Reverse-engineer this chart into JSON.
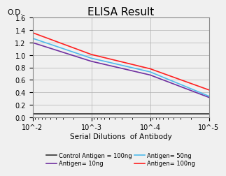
{
  "title": "ELISA Result",
  "xlabel": "Serial Dilutions  of Antibody",
  "ylabel": "O.D.",
  "ylim": [
    0,
    1.6
  ],
  "yticks": [
    0,
    0.2,
    0.4,
    0.6,
    0.8,
    1.0,
    1.2,
    1.4,
    1.6
  ],
  "xtick_vals": [
    0.01,
    0.001,
    0.0001,
    1e-05
  ],
  "xtick_labels": [
    "10^-2",
    "10^-3",
    "10^-4",
    "10^-5"
  ],
  "lines": [
    {
      "label": "Control Antigen = 100ng",
      "color": "#333333",
      "x": [
        0.01,
        0.001,
        0.0001,
        1e-05
      ],
      "y": [
        0.06,
        0.06,
        0.06,
        0.06
      ]
    },
    {
      "label": "Antigen= 10ng",
      "color": "#7030A0",
      "x": [
        0.01,
        0.001,
        0.0001,
        1e-05
      ],
      "y": [
        1.2,
        0.9,
        0.68,
        0.32
      ]
    },
    {
      "label": "Antigen= 50ng",
      "color": "#4FBBEC",
      "x": [
        0.01,
        0.001,
        0.0001,
        1e-05
      ],
      "y": [
        1.27,
        0.95,
        0.73,
        0.34
      ]
    },
    {
      "label": "Antigen= 100ng",
      "color": "#FF2020",
      "x": [
        0.01,
        0.001,
        0.0001,
        1e-05
      ],
      "y": [
        1.36,
        1.01,
        0.78,
        0.44
      ]
    }
  ],
  "legend_order": [
    0,
    1,
    2,
    3
  ],
  "background_color": "#f0f0f0",
  "plot_bg_color": "#f0f0f0",
  "grid_color": "#b0b0b0",
  "title_fontsize": 11,
  "axis_label_fontsize": 7.5,
  "tick_fontsize": 7,
  "legend_fontsize": 6,
  "linewidth": 1.2
}
